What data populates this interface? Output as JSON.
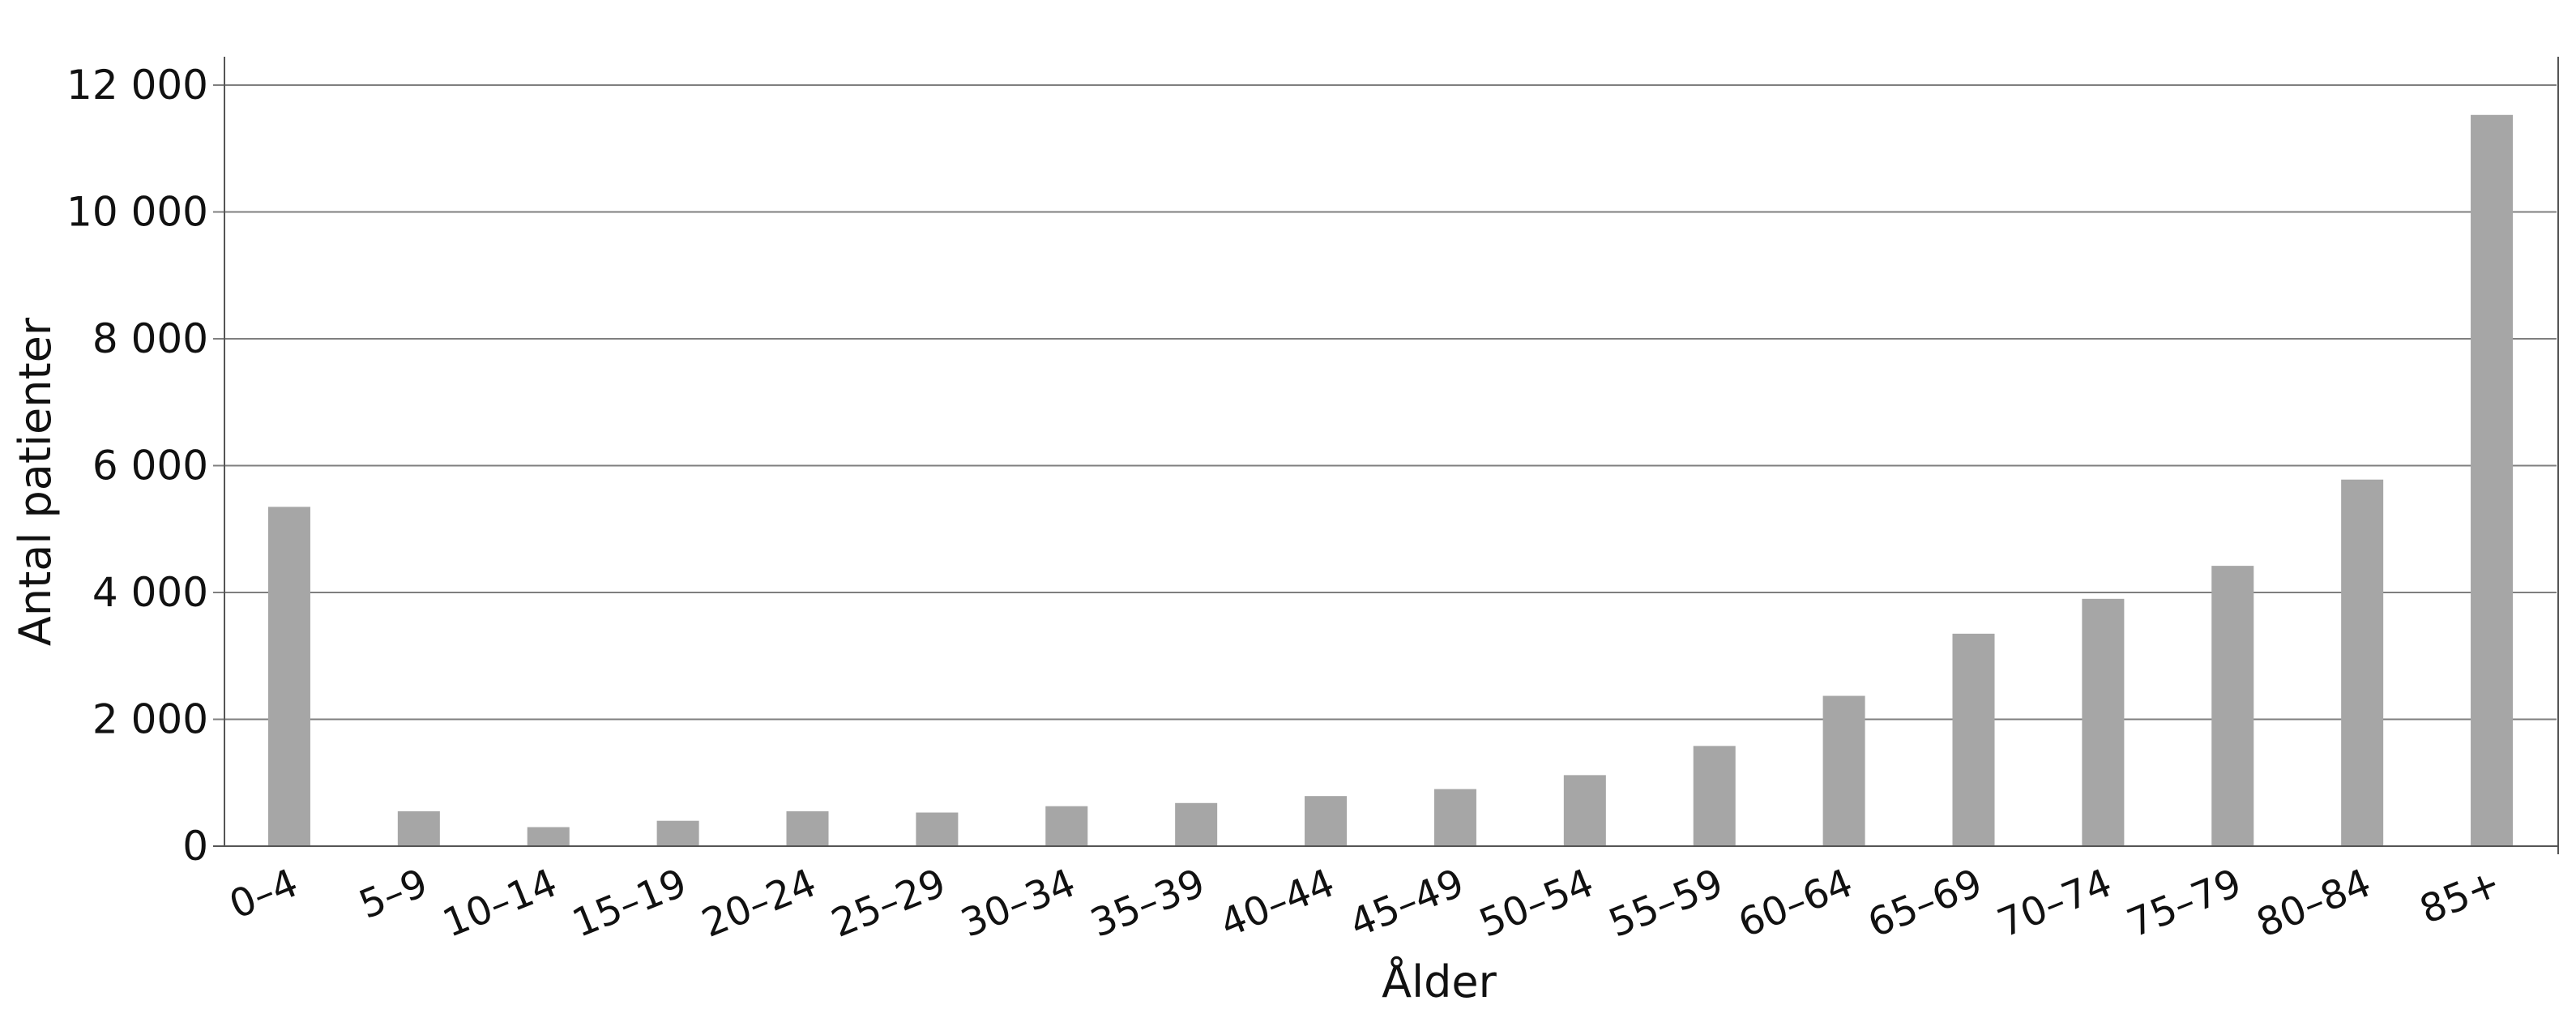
{
  "chart_data": {
    "type": "bar",
    "categories": [
      "0–4",
      "5–9",
      "10–14",
      "15–19",
      "20–24",
      "25–29",
      "30–34",
      "35–39",
      "40–44",
      "45–49",
      "50–54",
      "55–59",
      "60–64",
      "65–69",
      "70–74",
      "75–79",
      "80–84",
      "85+"
    ],
    "values": [
      5350,
      550,
      300,
      400,
      550,
      530,
      630,
      680,
      790,
      900,
      1120,
      1580,
      2370,
      3350,
      3900,
      4420,
      5780,
      11530
    ],
    "xlabel": "Ålder",
    "ylabel": "Antal patienter",
    "ylim": [
      0,
      12000
    ],
    "yticks": [
      0,
      2000,
      4000,
      6000,
      8000,
      10000,
      12000
    ],
    "ytick_labels": [
      "0",
      "2 000",
      "4 000",
      "6 000",
      "8 000",
      "10 000",
      "12 000"
    ],
    "grid": "horizontal",
    "bar_color": "#a6a6a6",
    "grid_color": "#7f7f7f",
    "axis_color": "#555555"
  }
}
